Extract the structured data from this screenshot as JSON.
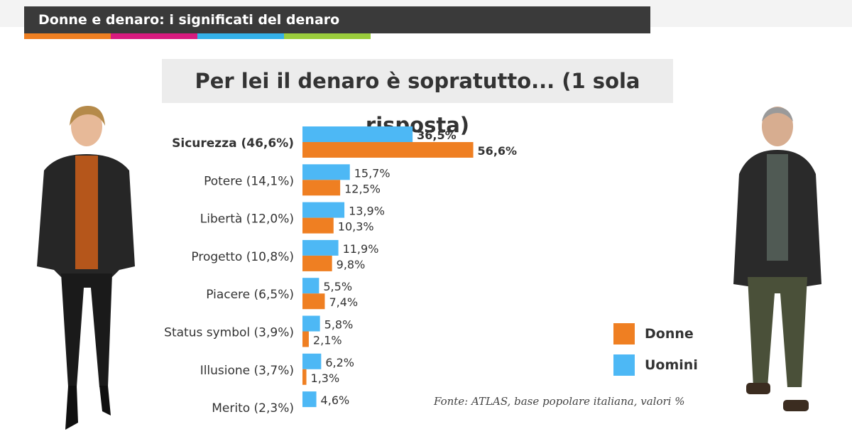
{
  "header": {
    "title": "Donne e denaro: i significati del denaro",
    "stripe_colors": [
      "#ee7f22",
      "#d81b7f",
      "#34b1e8",
      "#9acc3c"
    ]
  },
  "colors": {
    "donne": "#ef7f22",
    "uomini": "#4db8f5"
  },
  "chart_data": {
    "type": "bar",
    "orientation": "horizontal",
    "title": "Per lei il denaro è sopratutto... (1 sola risposta)",
    "categories": [
      "Sicurezza (46,6%)",
      "Potere (14,1%)",
      "Libertà (12,0%)",
      "Progetto (10,8%)",
      "Piacere (6,5%)",
      "Status symbol (3,9%)",
      "Illusione (3,7%)",
      "Merito (2,3%)"
    ],
    "series": [
      {
        "name": "Uomini",
        "values": [
          36.5,
          15.7,
          13.9,
          11.9,
          5.5,
          5.8,
          6.2,
          4.6
        ],
        "labels": [
          "36,5%",
          "15,7%",
          "13,9%",
          "11,9%",
          "5,5%",
          "5,8%",
          "6,2%",
          "4,6%"
        ]
      },
      {
        "name": "Donne",
        "values": [
          56.6,
          12.5,
          10.3,
          9.8,
          7.4,
          2.1,
          1.3,
          null
        ],
        "labels": [
          "56,6%",
          "12,5%",
          "10,3%",
          "9,8%",
          "7,4%",
          "2,1%",
          "1,3%",
          ""
        ]
      }
    ],
    "legend": {
      "position": "bottom-right",
      "entries": [
        "Donne",
        "Uomini"
      ]
    },
    "grid": false,
    "source": "Fonte: ATLAS, base popolare italiana, valori %"
  }
}
